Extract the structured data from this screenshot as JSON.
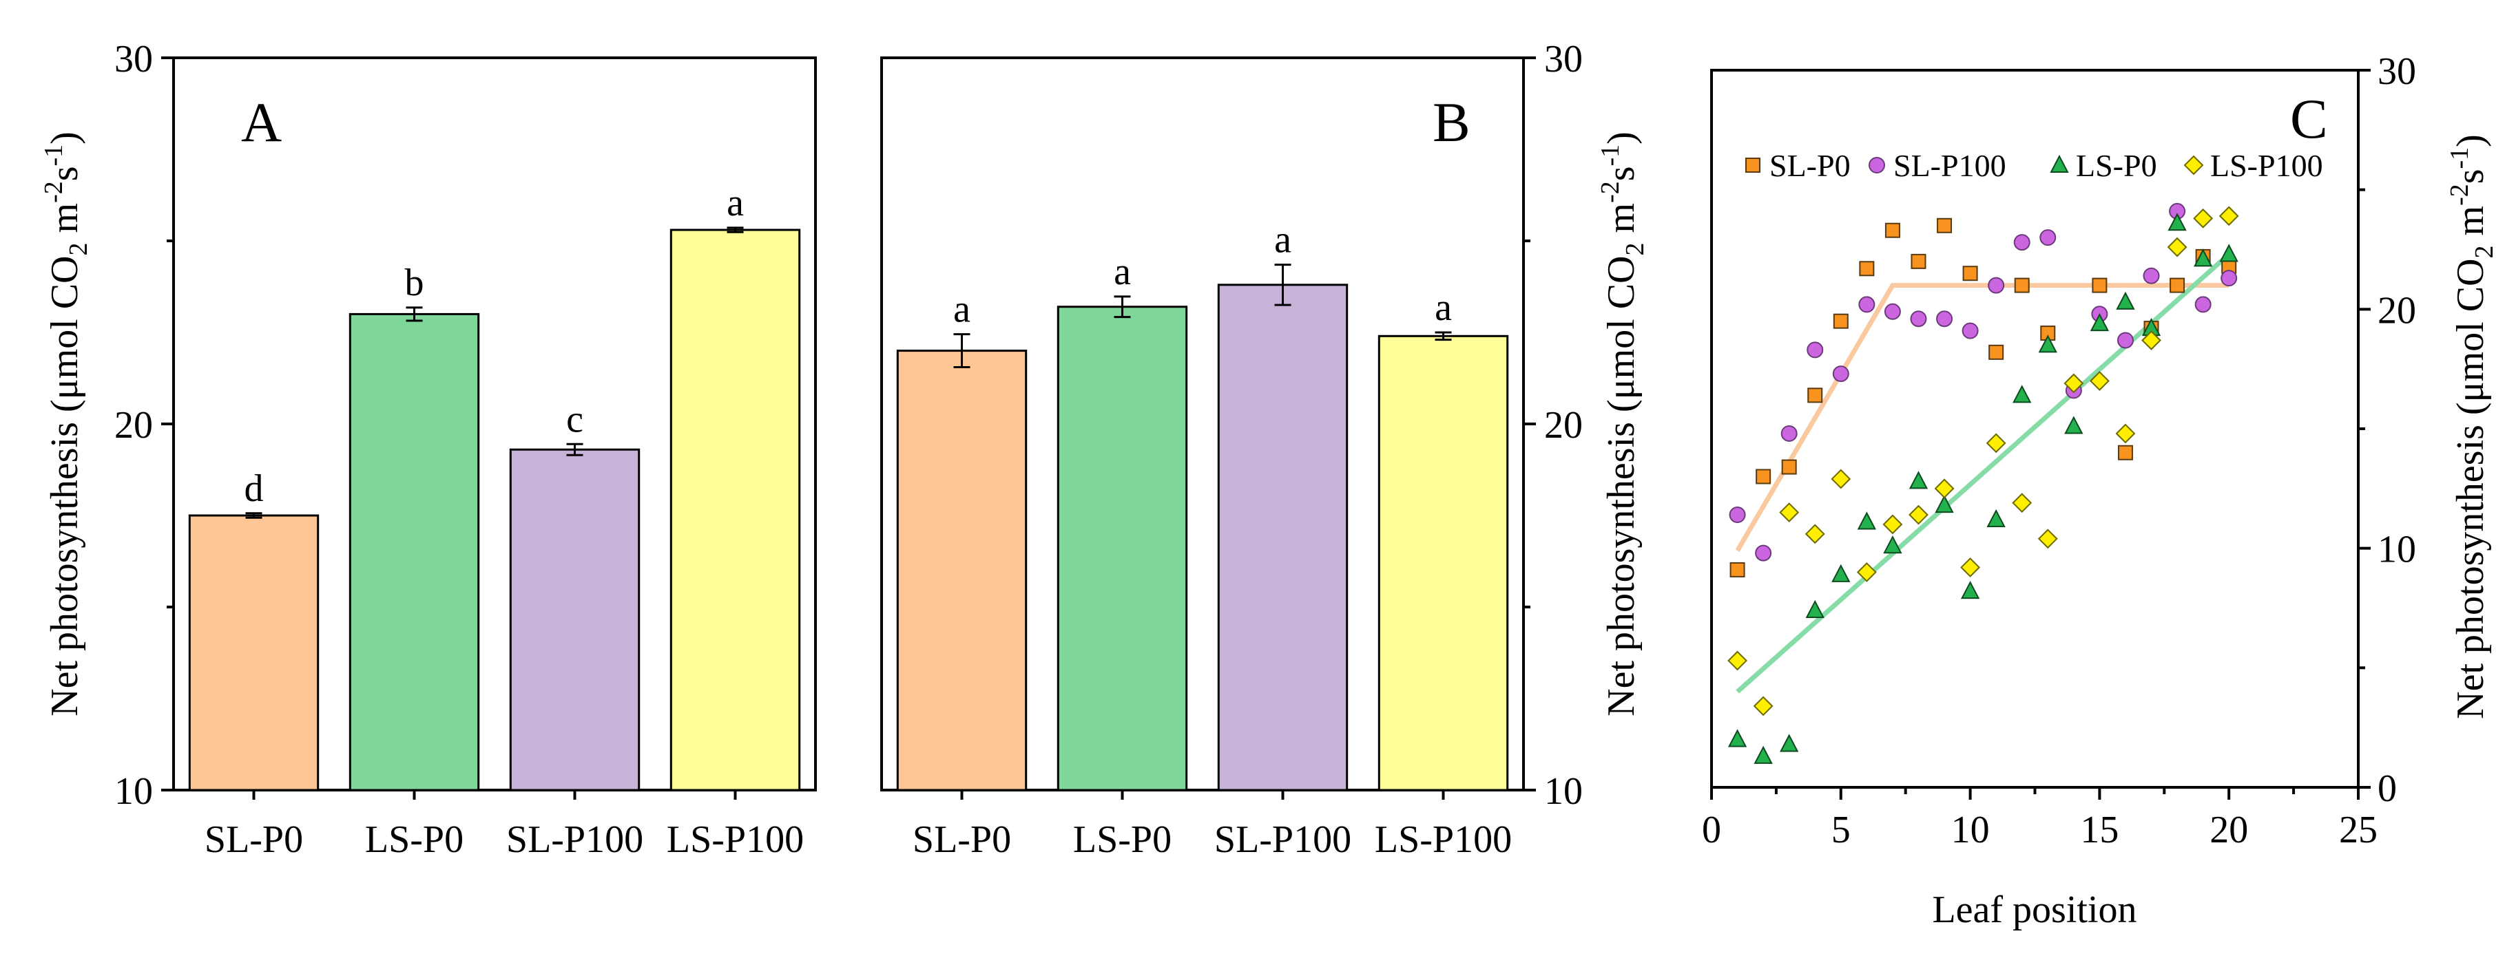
{
  "colors": {
    "SL-P0": "#FDC694",
    "LS-P0": "#7FD89A",
    "SL-P100": "#C8B3D8",
    "LS-P100": "#FFFF99",
    "marker_SL-P0": "#F7931E",
    "marker_SL-P100": "#CC66E0",
    "marker_LS-P0": "#22B14C",
    "marker_LS-P100": "#FFEE00",
    "fit_SL-P0": "#FBC9A0",
    "fit_LS-P0": "#86DCA6"
  },
  "chart_data": [
    {
      "panel": "A",
      "type": "bar",
      "panel_label": "A",
      "categories": [
        "SL-P0",
        "LS-P0",
        "SL-P100",
        "LS-P100"
      ],
      "values": [
        17.5,
        23.0,
        19.3,
        25.3
      ],
      "errors": [
        0.06,
        0.18,
        0.15,
        0.06
      ],
      "letters": [
        "d",
        "b",
        "c",
        "a"
      ],
      "ylabel_main": "Net photosynthesis  (μmol CO",
      "ylabel_sub2": "2",
      "ylabel_mid": " m",
      "ylabel_sup1": "-2",
      "ylabel_s": "s",
      "ylabel_sup2": "-1",
      "ylabel_end": ")",
      "ylim": [
        10,
        30
      ],
      "yticks": [
        "10",
        "20",
        "30"
      ],
      "yaxis_side": "left"
    },
    {
      "panel": "B",
      "type": "bar",
      "panel_label": "B",
      "categories": [
        "SL-P0",
        "LS-P0",
        "SL-P100",
        "LS-P100"
      ],
      "values": [
        22.0,
        23.2,
        23.8,
        22.4
      ],
      "errors": [
        0.45,
        0.28,
        0.55,
        0.1
      ],
      "letters": [
        "a",
        "a",
        "a",
        "a"
      ],
      "ylabel_main": "Net photosynthesis  (μmol CO",
      "ylabel_sub2": "2",
      "ylabel_mid": " m",
      "ylabel_sup1": "-2",
      "ylabel_s": "s",
      "ylabel_sup2": "-1",
      "ylabel_end": ")",
      "ylim": [
        10,
        30
      ],
      "yticks": [
        "10",
        "20",
        "30"
      ],
      "yaxis_side": "right"
    },
    {
      "panel": "C",
      "type": "scatter",
      "panel_label": "C",
      "xlabel": "Leaf position",
      "ylabel_main": "Net photosynthesis (μmol CO",
      "ylabel_sub2": "2",
      "ylabel_mid": " m",
      "ylabel_sup1": "-2",
      "ylabel_s": "s",
      "ylabel_sup2": "-1",
      "ylabel_end": ")",
      "xlim": [
        0,
        25
      ],
      "ylim": [
        0,
        30
      ],
      "xticks": [
        "0",
        "5",
        "10",
        "15",
        "20",
        "25"
      ],
      "yticks": [
        "0",
        "10",
        "20",
        "30"
      ],
      "legend_position": "top",
      "series": [
        {
          "name": "SL-P0",
          "marker": "square",
          "points": [
            [
              1,
              9.1
            ],
            [
              2,
              13
            ],
            [
              3,
              13.4
            ],
            [
              4,
              16.4
            ],
            [
              5,
              19.5
            ],
            [
              6,
              21.7
            ],
            [
              7,
              23.3
            ],
            [
              8,
              22.0
            ],
            [
              9,
              23.5
            ],
            [
              10,
              21.5
            ],
            [
              11,
              18.2
            ],
            [
              12,
              21.0
            ],
            [
              13,
              19.0
            ],
            [
              15,
              21.0
            ],
            [
              16,
              14.0
            ],
            [
              17,
              19.2
            ],
            [
              18,
              21.0
            ],
            [
              19,
              22.2
            ],
            [
              20,
              21.8
            ]
          ]
        },
        {
          "name": "SL-P100",
          "marker": "circle",
          "points": [
            [
              1,
              11.4
            ],
            [
              2,
              9.8
            ],
            [
              3,
              14.8
            ],
            [
              4,
              18.3
            ],
            [
              5,
              17.3
            ],
            [
              6,
              20.2
            ],
            [
              7,
              19.9
            ],
            [
              8,
              19.6
            ],
            [
              9,
              19.6
            ],
            [
              10,
              19.1
            ],
            [
              11,
              21.0
            ],
            [
              12,
              22.8
            ],
            [
              13,
              23.0
            ],
            [
              14,
              16.6
            ],
            [
              15,
              19.8
            ],
            [
              16,
              18.7
            ],
            [
              17,
              21.4
            ],
            [
              18,
              24.1
            ],
            [
              19,
              20.2
            ],
            [
              20,
              21.3
            ]
          ]
        },
        {
          "name": "LS-P0",
          "marker": "triangle",
          "points": [
            [
              1,
              2.0
            ],
            [
              2,
              1.3
            ],
            [
              3,
              1.8
            ],
            [
              4,
              7.4
            ],
            [
              5,
              8.9
            ],
            [
              6,
              11.1
            ],
            [
              7,
              10.1
            ],
            [
              8,
              12.8
            ],
            [
              9,
              11.8
            ],
            [
              10,
              8.2
            ],
            [
              11,
              11.2
            ],
            [
              12,
              16.4
            ],
            [
              13,
              18.5
            ],
            [
              14,
              15.1
            ],
            [
              15,
              19.4
            ],
            [
              16,
              20.3
            ],
            [
              17,
              19.2
            ],
            [
              18,
              23.6
            ],
            [
              19,
              22.1
            ],
            [
              20,
              22.3
            ]
          ]
        },
        {
          "name": "LS-P100",
          "marker": "diamond",
          "points": [
            [
              1,
              5.3
            ],
            [
              2,
              3.4
            ],
            [
              3,
              11.5
            ],
            [
              4,
              10.6
            ],
            [
              5,
              12.9
            ],
            [
              6,
              9.0
            ],
            [
              7,
              11.0
            ],
            [
              8,
              11.4
            ],
            [
              9,
              12.5
            ],
            [
              10,
              9.2
            ],
            [
              11,
              14.4
            ],
            [
              12,
              11.9
            ],
            [
              13,
              10.4
            ],
            [
              14,
              16.9
            ],
            [
              15,
              17.0
            ],
            [
              16,
              14.8
            ],
            [
              17,
              18.7
            ],
            [
              18,
              22.6
            ],
            [
              19,
              23.8
            ],
            [
              20,
              23.9
            ]
          ]
        }
      ],
      "fits": [
        {
          "series": "SL-P0",
          "points": [
            [
              1,
              9.9
            ],
            [
              7,
              21.0
            ],
            [
              20,
              21.0
            ]
          ]
        },
        {
          "series": "LS-P0",
          "points": [
            [
              1,
              4.0
            ],
            [
              20,
              22.3
            ]
          ]
        }
      ]
    }
  ]
}
